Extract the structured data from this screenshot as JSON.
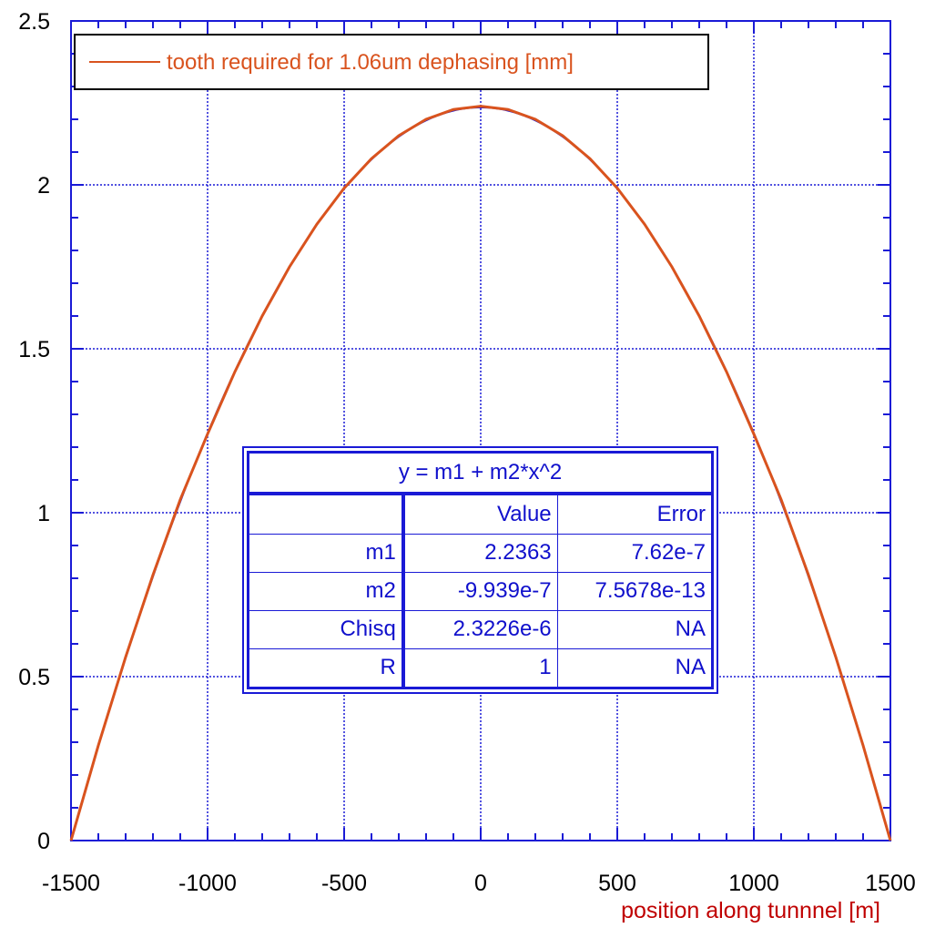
{
  "chart_data": {
    "type": "line",
    "title": "",
    "xlabel": "position along tunnnel [m]",
    "ylabel": "",
    "xlim": [
      -1500,
      1500
    ],
    "ylim": [
      0,
      2.5
    ],
    "x_ticks": [
      -1500,
      -1000,
      -500,
      0,
      500,
      1000,
      1500
    ],
    "x_tick_labels": [
      "-1500",
      "-1000",
      "-500",
      "0",
      "500",
      "1000",
      "1500"
    ],
    "y_ticks": [
      0,
      0.5,
      1,
      1.5,
      2,
      2.5
    ],
    "y_tick_labels": [
      "0",
      "0.5",
      "1",
      "1.5",
      "2",
      "2.5"
    ],
    "grid": true,
    "legend_position": "top-left",
    "colors": {
      "series": "#d9531e",
      "fit": "#1a1ad6",
      "axis": "#1a1ad6",
      "xlabel": "#c00000"
    },
    "series": [
      {
        "name": "tooth required for 1.06um dephasing [mm]",
        "x": [
          -1500,
          -1400,
          -1300,
          -1200,
          -1100,
          -1000,
          -900,
          -800,
          -700,
          -600,
          -500,
          -400,
          -300,
          -200,
          -100,
          0,
          100,
          200,
          300,
          400,
          500,
          600,
          700,
          800,
          900,
          1000,
          1100,
          1200,
          1300,
          1400,
          1500
        ],
        "y": [
          0.0,
          0.29,
          0.56,
          0.81,
          1.04,
          1.24,
          1.43,
          1.6,
          1.75,
          1.88,
          1.99,
          2.08,
          2.15,
          2.2,
          2.23,
          2.24,
          2.23,
          2.2,
          2.15,
          2.08,
          1.99,
          1.88,
          1.75,
          1.6,
          1.43,
          1.24,
          1.04,
          0.81,
          0.56,
          0.29,
          0.0
        ]
      }
    ],
    "fit": {
      "equation": "y = m1 + m2*x^2",
      "headers": [
        "",
        "Value",
        "Error"
      ],
      "rows": [
        {
          "name": "m1",
          "value": "2.2363",
          "error": "7.62e-7"
        },
        {
          "name": "m2",
          "value": "-9.939e-7",
          "error": "7.5678e-13"
        },
        {
          "name": "Chisq",
          "value": "2.3226e-6",
          "error": "NA"
        },
        {
          "name": "R",
          "value": "1",
          "error": "NA"
        }
      ]
    }
  }
}
